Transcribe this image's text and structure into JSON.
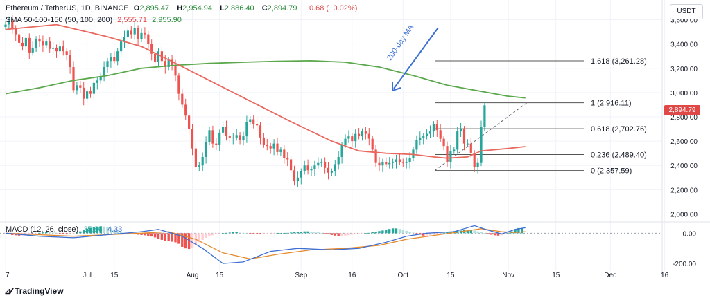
{
  "header": {
    "title": "Ethereum / TetherUS, 1D, BINANCE",
    "open_label": "O",
    "open": "2,895.47",
    "high_label": "H",
    "high": "2,954.94",
    "low_label": "L",
    "low": "2,886.40",
    "close_label": "C",
    "close": "2,894.79",
    "change": "−0.68 (−0.02%)",
    "sma_title": "SMA 50-100-150 (50, 100, 200)",
    "sma_a": "2,555.71",
    "sma_b": "2,955.90"
  },
  "currency_button": "USDT",
  "last_price": "2,894.79",
  "annotation": "200-day MA",
  "macd": {
    "title": "MACD (12, 26, close)",
    "value": "35.86",
    "value2": "4.33"
  },
  "logo_text": "TradingView",
  "colors": {
    "up": "#26a69a",
    "down": "#ef5350",
    "sma50": "#e8685e",
    "sma200": "#5aa84b",
    "macd": "#3d6fd3",
    "signal": "#e5892a",
    "arrow": "#3d6fd3"
  },
  "chart_data": [
    {
      "type": "line",
      "title": "Ethereum / TetherUS, 1D, BINANCE",
      "y_axis_ticks": [
        2000,
        2200,
        2400,
        2600,
        2800,
        3000,
        3200,
        3400,
        3600
      ],
      "y_axis_labels": [
        "2,000.00",
        "2,200.00",
        "2,400.00",
        "2,600.00",
        "2,800.00",
        "3,000.00",
        "3,200.00",
        "3,400.00",
        "3,600.00"
      ],
      "ylim": [
        1940,
        3660
      ],
      "x_axis_labels": [
        "7",
        "Jul",
        "15",
        "Aug",
        "15",
        "Sep",
        "16",
        "Oct",
        "15",
        "Nov",
        "15",
        "Dec",
        "16"
      ],
      "x_axis_days": [
        0,
        24,
        32,
        55,
        63,
        87,
        102,
        117,
        131,
        148,
        162,
        178,
        194
      ],
      "price_close": [
        3560,
        3590,
        3530,
        3480,
        3410,
        3380,
        3450,
        3330,
        3370,
        3440,
        3420,
        3390,
        3420,
        3360,
        3370,
        3340,
        3380,
        3340,
        3310,
        3210,
        3020,
        3060,
        3040,
        2950,
        3010,
        2990,
        3080,
        3100,
        3130,
        3210,
        3260,
        3290,
        3260,
        3340,
        3420,
        3460,
        3510,
        3480,
        3530,
        3440,
        3490,
        3480,
        3400,
        3320,
        3250,
        3340,
        3260,
        3210,
        3270,
        3220,
        3140,
        2990,
        2900,
        2810,
        2700,
        2540,
        2390,
        2400,
        2470,
        2590,
        2690,
        2580,
        2570,
        2670,
        2720,
        2640,
        2630,
        2630,
        2650,
        2610,
        2640,
        2760,
        2780,
        2740,
        2730,
        2630,
        2570,
        2560,
        2540,
        2580,
        2510,
        2530,
        2460,
        2450,
        2360,
        2270,
        2300,
        2350,
        2400,
        2360,
        2370,
        2400,
        2420,
        2430,
        2380,
        2340,
        2350,
        2410,
        2470,
        2570,
        2620,
        2640,
        2600,
        2660,
        2640,
        2680,
        2660,
        2620,
        2530,
        2420,
        2400,
        2430,
        2410,
        2420,
        2430,
        2450,
        2430,
        2420,
        2430,
        2460,
        2530,
        2610,
        2630,
        2640,
        2660,
        2680,
        2740,
        2690,
        2620,
        2560,
        2430,
        2520,
        2530,
        2680,
        2700,
        2580,
        2580,
        2500,
        2390,
        2420,
        2720,
        2895
      ],
      "sma_50": {
        "name": "SMA 50",
        "points": [
          [
            0,
            3520
          ],
          [
            15,
            3560
          ],
          [
            30,
            3460
          ],
          [
            40,
            3380
          ],
          [
            48,
            3270
          ],
          [
            60,
            3100
          ],
          [
            72,
            2930
          ],
          [
            84,
            2760
          ],
          [
            96,
            2600
          ],
          [
            104,
            2520
          ],
          [
            112,
            2500
          ],
          [
            120,
            2490
          ],
          [
            126,
            2470
          ],
          [
            130,
            2460
          ],
          [
            136,
            2470
          ],
          [
            140,
            2520
          ],
          [
            148,
            2540
          ],
          [
            153,
            2555
          ]
        ]
      },
      "sma_200": {
        "name": "SMA 200",
        "points": [
          [
            0,
            2990
          ],
          [
            10,
            3040
          ],
          [
            20,
            3100
          ],
          [
            30,
            3140
          ],
          [
            40,
            3200
          ],
          [
            50,
            3225
          ],
          [
            60,
            3240
          ],
          [
            70,
            3250
          ],
          [
            80,
            3258
          ],
          [
            90,
            3262
          ],
          [
            100,
            3250
          ],
          [
            110,
            3210
          ],
          [
            120,
            3140
          ],
          [
            130,
            3060
          ],
          [
            140,
            3010
          ],
          [
            148,
            2970
          ],
          [
            153,
            2956
          ]
        ]
      },
      "fibonacci": [
        {
          "label": "1.618 (3,261.28)",
          "value": 3261.28
        },
        {
          "label": "1 (2,916.11)",
          "value": 2916.11
        },
        {
          "label": "0.618 (2,702.76)",
          "value": 2702.76
        },
        {
          "label": "0.236 (2,489.40)",
          "value": 2489.4
        },
        {
          "label": "0 (2,357.59)",
          "value": 2357.59
        }
      ]
    },
    {
      "type": "bar",
      "title": "MACD (12, 26, close)",
      "y_axis_ticks": [
        -200,
        0
      ],
      "y_axis_labels": [
        "-200.00",
        "0.00"
      ],
      "ylim": [
        -250,
        70
      ],
      "histogram": [
        -5,
        -8,
        -12,
        -14,
        -16,
        -10,
        -8,
        -6,
        -4,
        -2,
        2,
        5,
        8,
        6,
        4,
        2,
        -2,
        -6,
        -8,
        -6,
        -3,
        4,
        12,
        22,
        30,
        36,
        40,
        44,
        46,
        44,
        40,
        34,
        26,
        18,
        10,
        2,
        -4,
        -6,
        -8,
        -10,
        -12,
        -14,
        -18,
        -22,
        -28,
        -36,
        -44,
        -50,
        -52,
        -56,
        -60,
        -70,
        -90,
        -100,
        -104,
        -98,
        -80,
        -60,
        -44,
        -30,
        -22,
        -14,
        -8,
        -4,
        0,
        2,
        4,
        6,
        6,
        4,
        2,
        0,
        -2,
        -4,
        -6,
        -8,
        -8,
        -6,
        -4,
        -2,
        0,
        0,
        0,
        2,
        4,
        6,
        8,
        10,
        12,
        12,
        10,
        8,
        6,
        2,
        -4,
        -8,
        -12,
        -16,
        -18,
        -18,
        -16,
        -14,
        -10,
        -6,
        -4,
        -2,
        0,
        2,
        6,
        10,
        14,
        18,
        24,
        28,
        32,
        32,
        28,
        22,
        16,
        10,
        4,
        -4,
        -10,
        -16,
        -16,
        -14,
        -10,
        -6,
        -2,
        2,
        6,
        10,
        14,
        16,
        18,
        20,
        22,
        22,
        18,
        12,
        6,
        0,
        -6,
        -10,
        -14,
        -16,
        -14,
        -8,
        2,
        12,
        24,
        34,
        36
      ],
      "macd_line": [
        [
          0,
          0
        ],
        [
          10,
          -20
        ],
        [
          20,
          -30
        ],
        [
          30,
          -10
        ],
        [
          40,
          10
        ],
        [
          45,
          25
        ],
        [
          52,
          -20
        ],
        [
          58,
          -100
        ],
        [
          64,
          -200
        ],
        [
          70,
          -190
        ],
        [
          78,
          -120
        ],
        [
          86,
          -100
        ],
        [
          96,
          -110
        ],
        [
          104,
          -100
        ],
        [
          112,
          -60
        ],
        [
          118,
          -20
        ],
        [
          124,
          0
        ],
        [
          132,
          10
        ],
        [
          138,
          50
        ],
        [
          142,
          20
        ],
        [
          146,
          -5
        ],
        [
          150,
          25
        ],
        [
          153,
          36
        ]
      ],
      "signal_line": [
        [
          0,
          0
        ],
        [
          10,
          -10
        ],
        [
          20,
          -20
        ],
        [
          30,
          -10
        ],
        [
          40,
          0
        ],
        [
          48,
          10
        ],
        [
          56,
          -40
        ],
        [
          64,
          -130
        ],
        [
          72,
          -170
        ],
        [
          80,
          -140
        ],
        [
          90,
          -110
        ],
        [
          100,
          -100
        ],
        [
          110,
          -80
        ],
        [
          118,
          -40
        ],
        [
          126,
          -15
        ],
        [
          134,
          10
        ],
        [
          140,
          30
        ],
        [
          146,
          10
        ],
        [
          150,
          5
        ],
        [
          153,
          10
        ]
      ]
    }
  ]
}
